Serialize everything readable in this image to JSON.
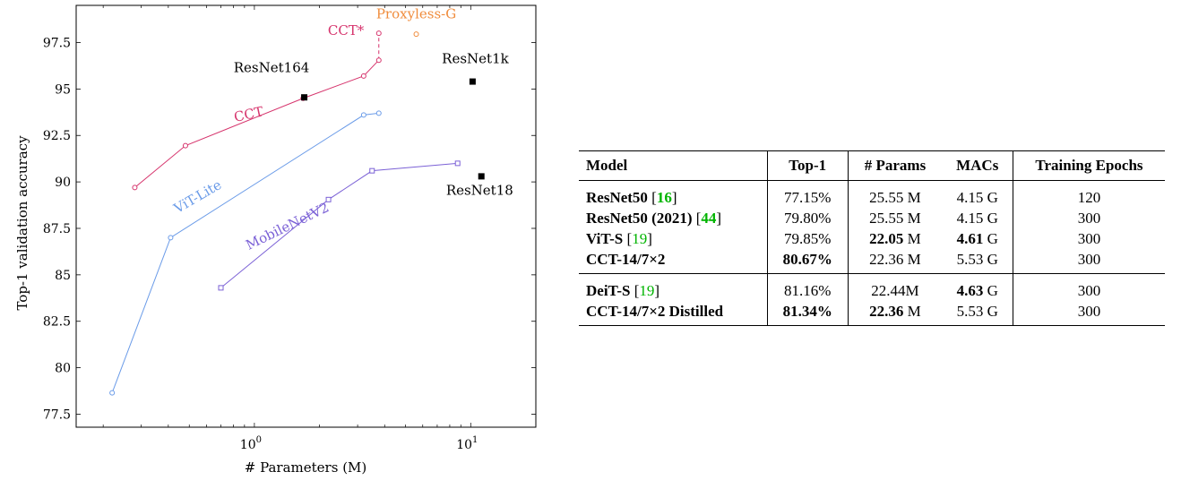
{
  "chart_data": {
    "type": "line",
    "xlabel": "# Parameters (M)",
    "ylabel": "Top-1 validation accuracy",
    "xscale": "log",
    "xlim": [
      0.15,
      20
    ],
    "ylim": [
      76.8,
      99.5
    ],
    "xticks": [
      {
        "value": 1,
        "base": "10",
        "exp": "0"
      },
      {
        "value": 10,
        "base": "10",
        "exp": "1"
      }
    ],
    "yticks": [
      {
        "value": 77.5,
        "label": "77.5"
      },
      {
        "value": 80,
        "label": "80"
      },
      {
        "value": 82.5,
        "label": "82.5"
      },
      {
        "value": 85,
        "label": "85"
      },
      {
        "value": 87.5,
        "label": "87.5"
      },
      {
        "value": 90,
        "label": "90"
      },
      {
        "value": 92.5,
        "label": "92.5"
      },
      {
        "value": 95,
        "label": "95"
      },
      {
        "value": 97.5,
        "label": "97.5"
      }
    ],
    "series": [
      {
        "name": "CCT",
        "color": "#d6336c",
        "marker": "circle",
        "x": [
          0.28,
          0.48,
          1.68,
          3.2,
          3.76
        ],
        "y": [
          89.7,
          91.95,
          94.5,
          95.7,
          96.55
        ]
      },
      {
        "name": "ViT-Lite",
        "color": "#6a9be8",
        "marker": "circle",
        "x": [
          0.22,
          0.41,
          3.2,
          3.76
        ],
        "y": [
          78.65,
          87.0,
          93.6,
          93.7
        ]
      },
      {
        "name": "MobileNetV2",
        "color": "#7b61d6",
        "marker": "square",
        "x": [
          0.7,
          2.2,
          3.5,
          8.7
        ],
        "y": [
          84.3,
          89.05,
          90.6,
          91.0
        ]
      }
    ],
    "extra_points": [
      {
        "name": "CCT*",
        "x": 3.76,
        "y": 98.0,
        "color": "#d6336c",
        "marker": "circle"
      },
      {
        "name": "Proxyless-G",
        "x": 5.6,
        "y": 97.95,
        "color": "#f08c3c",
        "marker": "circle"
      },
      {
        "name": "ResNet164",
        "x": 1.7,
        "y": 94.55,
        "color": "#000000",
        "marker": "filled-square"
      },
      {
        "name": "ResNet1k",
        "x": 10.2,
        "y": 95.4,
        "color": "#000000",
        "marker": "filled-square"
      },
      {
        "name": "ResNet18",
        "x": 11.2,
        "y": 90.3,
        "color": "#000000",
        "marker": "filled-square"
      }
    ],
    "dashed_link": {
      "color": "#d6336c",
      "x": [
        3.76,
        3.76
      ],
      "y": [
        96.55,
        98.0
      ]
    },
    "annotations": [
      {
        "text": "CCT",
        "color": "#d6336c",
        "x": 0.95,
        "y": 93.4,
        "rotate": -12
      },
      {
        "text": "ViT-Lite",
        "color": "#6a9be8",
        "x": 0.56,
        "y": 89.0,
        "rotate": -30
      },
      {
        "text": "MobileNetV2",
        "color": "#7b61d6",
        "x": 1.45,
        "y": 87.4,
        "rotate": -26
      },
      {
        "text": "CCT*",
        "color": "#d6336c",
        "x": 2.65,
        "y": 97.9,
        "rotate": 0
      },
      {
        "text": "Proxyless-G",
        "color": "#f08c3c",
        "x": 5.6,
        "y": 98.8,
        "rotate": 0
      },
      {
        "text": "ResNet164",
        "color": "#000000",
        "x": 1.2,
        "y": 95.9,
        "rotate": 0
      },
      {
        "text": "ResNet1k",
        "color": "#000000",
        "x": 10.5,
        "y": 96.4,
        "rotate": 0
      },
      {
        "text": "ResNet18",
        "color": "#000000",
        "x": 11.0,
        "y": 89.3,
        "rotate": 0
      }
    ],
    "grid": false,
    "legend": "none"
  },
  "table": {
    "headers": [
      "Model",
      "Top-1",
      "# Params",
      "MACs",
      "Training Epochs"
    ],
    "group1": [
      {
        "model": "ResNet50",
        "cite": "16",
        "cite_bold": true,
        "top1": "77.15%",
        "top1_bold": false,
        "params_num": "25.55",
        "params_unit": " M",
        "params_bold": false,
        "macs_num": "4.15",
        "macs_unit": " G",
        "macs_bold": false,
        "epochs": "120"
      },
      {
        "model": "ResNet50 (2021)",
        "cite": "44",
        "cite_bold": true,
        "top1": "79.80%",
        "top1_bold": false,
        "params_num": "25.55",
        "params_unit": " M",
        "params_bold": false,
        "macs_num": "4.15",
        "macs_unit": " G",
        "macs_bold": false,
        "epochs": "300"
      },
      {
        "model": "ViT-S",
        "cite": "19",
        "cite_bold": false,
        "top1": "79.85%",
        "top1_bold": false,
        "params_num": "22.05",
        "params_unit": " M",
        "params_bold": true,
        "macs_num": "4.61",
        "macs_unit": " G",
        "macs_bold": true,
        "epochs": "300"
      },
      {
        "model": "CCT-14/7×2",
        "cite": "",
        "cite_bold": false,
        "top1": "80.67%",
        "top1_bold": true,
        "params_num": "22.36",
        "params_unit": " M",
        "params_bold": false,
        "macs_num": "5.53",
        "macs_unit": " G",
        "macs_bold": false,
        "epochs": "300"
      }
    ],
    "group2": [
      {
        "model": "DeiT-S",
        "cite": "19",
        "cite_bold": false,
        "top1": "81.16%",
        "top1_bold": false,
        "params_num": "22.44",
        "params_unit": "M",
        "params_bold": false,
        "macs_num": "4.63",
        "macs_unit": " G",
        "macs_bold": true,
        "epochs": "300"
      },
      {
        "model": "CCT-14/7×2 Distilled",
        "cite": "",
        "cite_bold": false,
        "top1": "81.34%",
        "top1_bold": true,
        "params_num": "22.36",
        "params_unit": " M",
        "params_bold": true,
        "macs_num": "5.53",
        "macs_unit": " G",
        "macs_bold": false,
        "epochs": "300"
      }
    ]
  }
}
